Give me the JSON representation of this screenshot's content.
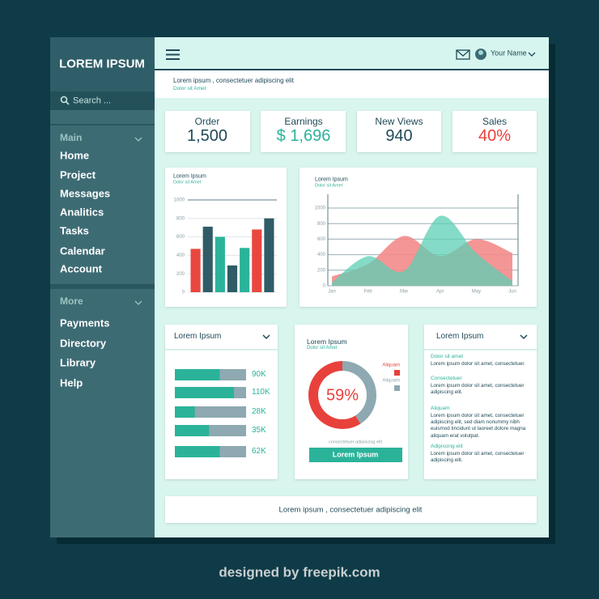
{
  "sidebar": {
    "brand": "LOREM IPSUM",
    "search": "Search ...",
    "sections": [
      {
        "title": "Main",
        "items": [
          "Home",
          "Project",
          "Messages",
          "Analitics",
          "Tasks",
          "Calendar",
          "Account"
        ]
      },
      {
        "title": "More",
        "items": [
          "Payments",
          "Directory",
          "Library",
          "Help"
        ]
      }
    ]
  },
  "topbar": {
    "user": "Your Name"
  },
  "header": {
    "title": "Lorem ipsum , consectetuer adipiscing elit",
    "subtitle": "Dolor sit Amet"
  },
  "stats": [
    {
      "label": "Order",
      "value": "1,500",
      "color": "#1f4a58"
    },
    {
      "label": "Earnings",
      "value": "$ 1,696",
      "color": "#2bb39a"
    },
    {
      "label": "New Views",
      "value": "940",
      "color": "#1f4a58"
    },
    {
      "label": "Sales",
      "value": "40%",
      "color": "#e8413c"
    }
  ],
  "chart_data": [
    {
      "type": "bar",
      "title": "Lorem Ipsum",
      "subtitle": "Dolor sit Amet",
      "values": [
        470,
        710,
        600,
        290,
        480,
        680,
        800
      ],
      "colors": [
        "#e8473f",
        "#2f5c66",
        "#2bb39a",
        "#2f5c66",
        "#2bb39a",
        "#e8473f",
        "#2f5c66"
      ],
      "ylim": [
        0,
        1000
      ],
      "yticks": [
        0,
        200,
        400,
        600,
        800,
        1000
      ],
      "grid": true
    },
    {
      "type": "area",
      "title": "Lorem Ipsum",
      "subtitle": "Dolor sit Amet",
      "categories": [
        "Jan",
        "Feb",
        "Mar",
        "Apr",
        "May",
        "Jun"
      ],
      "series": [
        {
          "name": null,
          "color": "#f28b89",
          "values": [
            120,
            280,
            640,
            380,
            600,
            420
          ]
        },
        {
          "name": null,
          "color": "#5ccfb4",
          "values": [
            40,
            380,
            190,
            900,
            420,
            60
          ]
        }
      ],
      "ylim": [
        0,
        1000
      ],
      "yticks": [
        0,
        200,
        400,
        600,
        800,
        1000
      ],
      "grid": true
    },
    {
      "type": "donut",
      "title": "Lorem Ipsum",
      "subtitle": "Dolor sit Amet",
      "values": [
        59,
        41
      ],
      "colors": [
        "#e8413c",
        "#8ea9b1"
      ],
      "center_label": "59%",
      "legend": [
        "Aliquam",
        "Aliquam"
      ],
      "caption": "consectetuer adipiscing elit",
      "button": "Lorem Ipsum"
    }
  ],
  "progress_card": {
    "title": "Lorem Ipsum",
    "items": [
      {
        "label": "90K",
        "percent": 63
      },
      {
        "label": "110K",
        "percent": 83
      },
      {
        "label": "28K",
        "percent": 28
      },
      {
        "label": "35K",
        "percent": 48
      },
      {
        "label": "62K",
        "percent": 63
      }
    ]
  },
  "text_card": {
    "title": "Lorem Ipsum",
    "entries": [
      {
        "heading": "Dolor sit amet",
        "text": "Lorem ipsum dolor sit amet, consectetuer."
      },
      {
        "heading": "Consectetuer",
        "text": "Lorem ipsum dolor sit amet, consectetuer adipiscing elit."
      },
      {
        "heading": "Aliquam",
        "text": "Lorem ipsum dolor sit amet, consectetuer adipiscing elit, sed diam nonummy nibh euismod tincidunt ut laoreet dolore magna aliquam erat volutpat."
      },
      {
        "heading": "Adipiscing elit",
        "text": "Lorem ipsum dolor sit amet, consectetuer adipiscing elit."
      }
    ]
  },
  "footer": "Lorem ipsum , consectetuer adipiscing elit",
  "watermark": "designed by freepik.com"
}
